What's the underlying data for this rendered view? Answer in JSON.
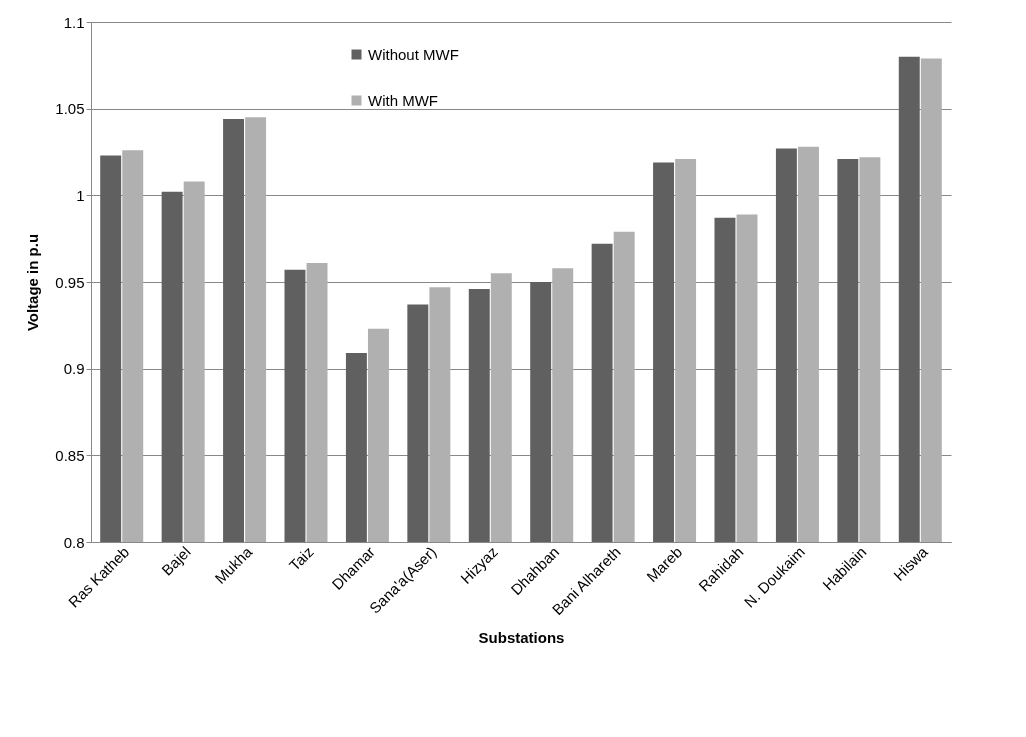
{
  "chart_data": {
    "type": "bar",
    "xlabel": "Substations",
    "ylabel": "Voltage in p.u",
    "categories": [
      "Ras Katheb",
      "Bajel",
      "Mukha",
      "Taiz",
      "Dhamar",
      "Sana'a(Aser)",
      "Hizyaz",
      "Dhahban",
      "Bani Alhareth",
      "Mareb",
      "Rahidah",
      "N. Doukaim",
      "Habilain",
      "Hiswa"
    ],
    "series": [
      {
        "name": "Without MWF",
        "color": "#606060",
        "values": [
          1.023,
          1.002,
          1.044,
          0.957,
          0.909,
          0.937,
          0.946,
          0.95,
          0.972,
          1.019,
          0.987,
          1.027,
          1.021,
          1.08
        ]
      },
      {
        "name": "With MWF",
        "color": "#b0b0b0",
        "values": [
          1.026,
          1.008,
          1.045,
          0.961,
          0.923,
          0.947,
          0.955,
          0.958,
          0.979,
          1.021,
          0.989,
          1.028,
          1.022,
          1.079
        ]
      }
    ],
    "ylim": [
      0.8,
      1.1
    ],
    "yticks": [
      0.8,
      0.85,
      0.9,
      0.95,
      1,
      1.05,
      1.1
    ],
    "grid": "y",
    "legend": "top"
  }
}
